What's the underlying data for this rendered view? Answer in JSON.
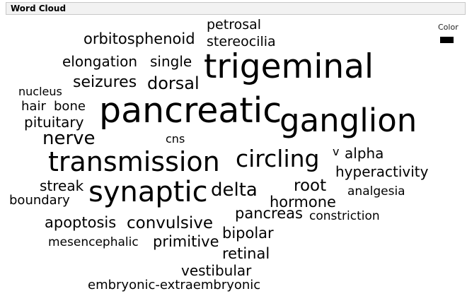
{
  "panel": {
    "title": "Word Cloud"
  },
  "legend": {
    "title": "Color",
    "swatch_color": "#000000"
  },
  "words": [
    "petrosal",
    "stereocilia",
    "orbitosphenoid",
    "trigeminal",
    "elongation",
    "single",
    "seizures",
    "dorsal",
    "nucleus",
    "hair",
    "bone",
    "pancreatic",
    "ganglion",
    "pituitary",
    "nerve",
    "cns",
    "transmission",
    "circling",
    "v",
    "alpha",
    "hyperactivity",
    "streak",
    "synaptic",
    "delta",
    "root",
    "analgesia",
    "boundary",
    "hormone",
    "pancreas",
    "constriction",
    "apoptosis",
    "convulsive",
    "bipolar",
    "mesencephalic",
    "primitive",
    "retinal",
    "vestibular",
    "embryonic-extraembryonic"
  ]
}
